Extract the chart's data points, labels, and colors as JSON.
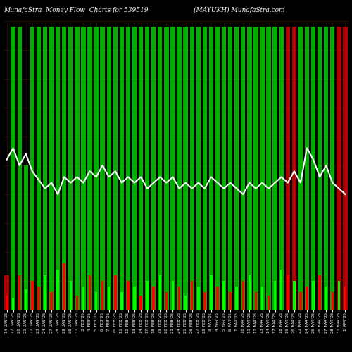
{
  "title_left": "MunafaStra  Money Flow  Charts for 539519",
  "title_right": "(MAYUKH) MunafaStra.com",
  "background_color": "#000000",
  "bar_color_positive": "#00ff00",
  "bar_color_negative": "#ff0000",
  "line_color": "#ffffff",
  "line_width": 1.5,
  "categories": [
    "14 JAN'25",
    "17 JAN'25",
    "20 JAN'25",
    "21 JAN'25",
    "22 JAN'25",
    "23 JAN'25",
    "24 JAN'25",
    "27 JAN'25",
    "28 JAN'25",
    "29 JAN'25",
    "30 JAN'25",
    "31 JAN'25",
    "3 FEB'25",
    "4 FEB'25",
    "5 FEB'25",
    "6 FEB'25",
    "7 FEB'25",
    "10 FEB'25",
    "11 FEB'25",
    "12 FEB'25",
    "13 FEB'25",
    "14 FEB'25",
    "17 FEB'25",
    "18 FEB'25",
    "19 FEB'25",
    "20 FEB'25",
    "21 FEB'25",
    "24 FEB'25",
    "25 FEB'25",
    "26 FEB'25",
    "27 FEB'25",
    "28 FEB'25",
    "3 MAR'25",
    "4 MAR'25",
    "5 MAR'25",
    "6 MAR'25",
    "7 MAR'25",
    "10 MAR'25",
    "11 MAR'25",
    "12 MAR'25",
    "13 MAR'25",
    "14 MAR'25",
    "17 MAR'25",
    "18 MAR'25",
    "19 MAR'25",
    "20 MAR'25",
    "21 MAR'25",
    "24 MAR'25",
    "25 MAR'25",
    "26 MAR'25",
    "27 MAR'25",
    "28 MAR'25",
    "31 MAR'25",
    "1 APR'25"
  ],
  "tall_colors": [
    "red",
    "green",
    "green",
    "green",
    "green",
    "green",
    "green",
    "green",
    "green",
    "green",
    "green",
    "green",
    "green",
    "green",
    "green",
    "green",
    "green",
    "green",
    "green",
    "green",
    "green",
    "green",
    "green",
    "green",
    "green",
    "green",
    "green",
    "green",
    "green",
    "green",
    "green",
    "green",
    "green",
    "green",
    "green",
    "green",
    "green",
    "green",
    "green",
    "green",
    "green",
    "green",
    "green",
    "green",
    "red",
    "red",
    "green",
    "green",
    "green",
    "green",
    "green",
    "green",
    "red",
    "red"
  ],
  "short_colors": [
    "red",
    "green",
    "red",
    "green",
    "red",
    "red",
    "green",
    "red",
    "green",
    "red",
    "green",
    "red",
    "green",
    "red",
    "green",
    "red",
    "green",
    "red",
    "green",
    "red",
    "green",
    "red",
    "green",
    "red",
    "green",
    "red",
    "green",
    "red",
    "green",
    "red",
    "green",
    "red",
    "green",
    "red",
    "green",
    "red",
    "green",
    "red",
    "green",
    "red",
    "green",
    "red",
    "green",
    "green",
    "red",
    "green",
    "red",
    "red",
    "green",
    "red",
    "green",
    "red",
    "green",
    "red"
  ],
  "tall_heights": [
    0.12,
    0.98,
    0.98,
    0.5,
    0.98,
    0.98,
    0.98,
    0.98,
    0.98,
    0.98,
    0.98,
    0.98,
    0.98,
    0.98,
    0.98,
    0.98,
    0.98,
    0.98,
    0.98,
    0.98,
    0.98,
    0.98,
    0.98,
    0.98,
    0.98,
    0.98,
    0.98,
    0.98,
    0.98,
    0.98,
    0.98,
    0.98,
    0.98,
    0.98,
    0.98,
    0.98,
    0.98,
    0.98,
    0.98,
    0.98,
    0.98,
    0.98,
    0.98,
    0.98,
    0.98,
    0.98,
    0.98,
    0.98,
    0.98,
    0.98,
    0.98,
    0.98,
    0.98,
    0.98
  ],
  "short_heights": [
    0.05,
    0.04,
    0.12,
    0.07,
    0.1,
    0.08,
    0.12,
    0.06,
    0.14,
    0.16,
    0.1,
    0.05,
    0.08,
    0.12,
    0.06,
    0.1,
    0.08,
    0.12,
    0.06,
    0.1,
    0.08,
    0.05,
    0.1,
    0.08,
    0.12,
    0.06,
    0.1,
    0.08,
    0.05,
    0.1,
    0.08,
    0.06,
    0.12,
    0.08,
    0.1,
    0.06,
    0.08,
    0.1,
    0.12,
    0.06,
    0.08,
    0.05,
    0.1,
    0.14,
    0.12,
    0.1,
    0.06,
    0.08,
    0.1,
    0.12,
    0.08,
    0.06,
    0.1,
    0.08
  ],
  "line_values": [
    0.52,
    0.56,
    0.5,
    0.54,
    0.48,
    0.45,
    0.42,
    0.44,
    0.4,
    0.46,
    0.44,
    0.46,
    0.44,
    0.48,
    0.46,
    0.5,
    0.46,
    0.48,
    0.44,
    0.46,
    0.44,
    0.46,
    0.42,
    0.44,
    0.46,
    0.44,
    0.46,
    0.42,
    0.44,
    0.42,
    0.44,
    0.42,
    0.46,
    0.44,
    0.42,
    0.44,
    0.42,
    0.4,
    0.44,
    0.42,
    0.44,
    0.42,
    0.44,
    0.46,
    0.44,
    0.48,
    0.44,
    0.56,
    0.52,
    0.46,
    0.5,
    0.44,
    0.42,
    0.4
  ],
  "ylim": [
    0,
    1
  ],
  "figsize": [
    5.0,
    5.0
  ],
  "dpi": 100,
  "title_fontsize": 6.5,
  "tick_fontsize": 4.0,
  "bar_width": 0.7,
  "bar_alpha_tall": 0.85,
  "grid_color": "#3a1a00",
  "grid_linewidth": 0.4
}
